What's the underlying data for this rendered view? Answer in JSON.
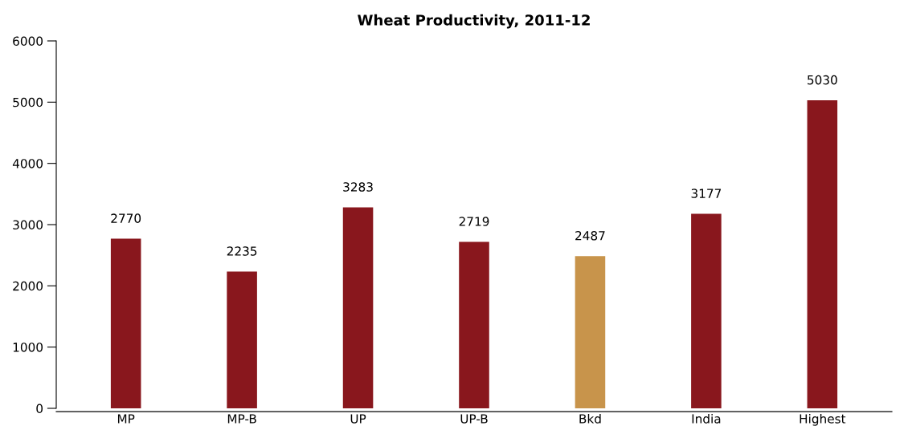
{
  "chart_data": {
    "type": "bar",
    "title": "Wheat Productivity, 2011-12",
    "categories": [
      "MP",
      "MP-B",
      "UP",
      "UP-B",
      "Bkd",
      "India",
      "Highest"
    ],
    "values": [
      2770,
      2235,
      3283,
      2719,
      2487,
      3177,
      5030
    ],
    "colors": [
      "#89171d",
      "#89171d",
      "#89171d",
      "#89171d",
      "#c8944b",
      "#89171d",
      "#89171d"
    ],
    "ylim": [
      0,
      6000
    ],
    "yticks": [
      0,
      1000,
      2000,
      3000,
      4000,
      5000,
      6000
    ],
    "data_labels": true,
    "grid": false,
    "legend": false
  }
}
